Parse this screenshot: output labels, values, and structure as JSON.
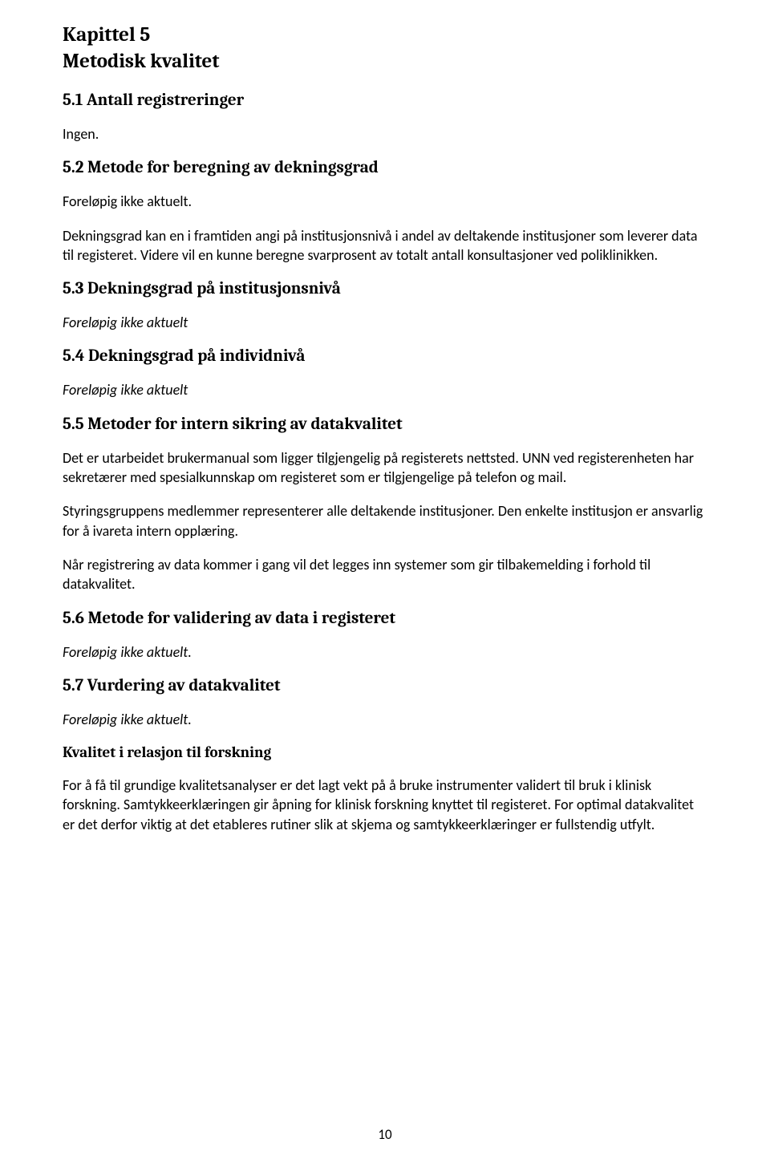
{
  "chapter": {
    "line1": "Kapittel 5",
    "line2": "Metodisk kvalitet"
  },
  "sections": {
    "s51": {
      "heading": "5.1 Antall registreringer",
      "body": "Ingen."
    },
    "s52": {
      "heading": "5.2 Metode for beregning av dekningsgrad",
      "p1": "Foreløpig ikke aktuelt.",
      "p2": "Dekningsgrad kan en i framtiden angi på institusjonsnivå i andel av deltakende institusjoner som leverer data til registeret. Videre vil en kunne beregne svarprosent av totalt antall konsultasjoner ved poliklinikken."
    },
    "s53": {
      "heading": "5.3 Dekningsgrad på institusjonsnivå",
      "body": "Foreløpig ikke aktuelt"
    },
    "s54": {
      "heading": "5.4 Dekningsgrad på individnivå",
      "body": "Foreløpig ikke aktuelt"
    },
    "s55": {
      "heading": "5.5 Metoder for intern sikring av datakvalitet",
      "p1": "Det er utarbeidet brukermanual som ligger tilgjengelig på registerets nettsted. UNN ved registerenheten har sekretærer med spesialkunnskap om registeret som er tilgjengelige på telefon og mail.",
      "p2": "Styringsgruppens medlemmer representerer alle deltakende institusjoner. Den enkelte institusjon er ansvarlig for å ivareta intern opplæring.",
      "p3": "Når registrering av data kommer i gang vil det legges inn systemer som gir tilbakemelding i forhold til datakvalitet."
    },
    "s56": {
      "heading": "5.6 Metode for validering av data i registeret",
      "body": "Foreløpig ikke aktuelt."
    },
    "s57": {
      "heading": "5.7 Vurdering av datakvalitet",
      "p1": "Foreløpig ikke aktuelt.",
      "subheading": "Kvalitet i relasjon til forskning",
      "p2": "For å få til grundige kvalitetsanalyser er det lagt vekt på å bruke instrumenter validert til bruk i klinisk forskning. Samtykkeerklæringen gir åpning for klinisk forskning knyttet til registeret. For optimal datakvalitet er det derfor viktig at det etableres rutiner slik at skjema og samtykkeerklæringer er fullstendig utfylt."
    }
  },
  "pageNumber": "10"
}
